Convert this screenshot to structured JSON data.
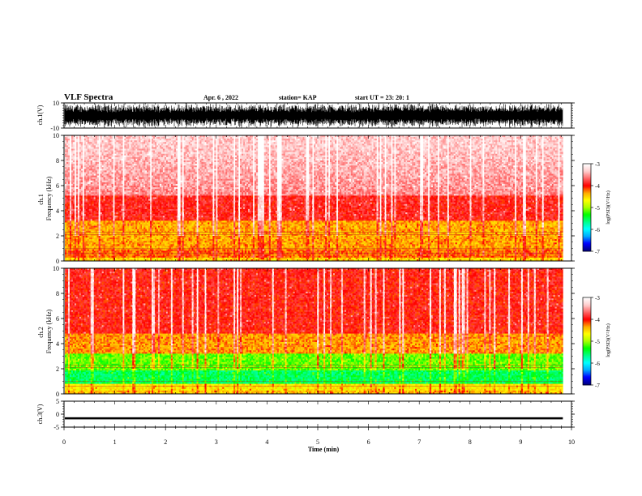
{
  "header": {
    "title": "VLF Spectra",
    "date": "Apr. 6  , 2022",
    "station": "station= KAP",
    "start": "start  UT  =   23: 20: 1"
  },
  "chart_data": [
    {
      "type": "line",
      "name": "ch1-waveform",
      "ylabel": "ch.1(V)",
      "ylim": [
        -10,
        10
      ],
      "yticks": [
        10,
        -10
      ],
      "xlim": [
        0,
        10
      ],
      "data_end_min": 9.83,
      "shape": "dense noise filling most of the range"
    },
    {
      "type": "heatmap",
      "name": "ch1-spectrogram",
      "ylabel_lines": [
        "ch.1",
        "Frequency  (kHz)"
      ],
      "ylim": [
        0,
        10
      ],
      "yticks": [
        0,
        2,
        4,
        6,
        8,
        10
      ],
      "xlim": [
        0,
        10
      ],
      "data_end_min": 9.83,
      "bands": [
        {
          "from_khz": 0,
          "to_khz": 1.0,
          "dominant": "red/orange"
        },
        {
          "from_khz": 1.0,
          "to_khz": 3.2,
          "dominant": "yellow"
        },
        {
          "from_khz": 3.2,
          "to_khz": 5.2,
          "dominant": "red"
        },
        {
          "from_khz": 5.2,
          "to_khz": 10,
          "dominant": "pink/light red"
        }
      ],
      "colorbar": {
        "label": "log(PSD)(V²/Hz)",
        "ticks": [
          "-3",
          "-4",
          "-5",
          "-6",
          "-7"
        ],
        "range": [
          -7,
          -3
        ]
      }
    },
    {
      "type": "heatmap",
      "name": "ch2-spectrogram",
      "ylabel_lines": [
        "ch.2",
        "Frequency  (kHz)"
      ],
      "ylim": [
        0,
        10
      ],
      "yticks": [
        0,
        2,
        4,
        6,
        8,
        10
      ],
      "xlim": [
        0,
        10
      ],
      "data_end_min": 9.83,
      "bands": [
        {
          "from_khz": 0,
          "to_khz": 0.8,
          "dominant": "yellow/red"
        },
        {
          "from_khz": 0.8,
          "to_khz": 1.8,
          "dominant": "cyan/green"
        },
        {
          "from_khz": 1.8,
          "to_khz": 3.2,
          "dominant": "green"
        },
        {
          "from_khz": 3.2,
          "to_khz": 4.8,
          "dominant": "yellow/red"
        },
        {
          "from_khz": 4.8,
          "to_khz": 10,
          "dominant": "red"
        }
      ],
      "colorbar": {
        "label": "log(PSD)(V²/Hz)",
        "ticks": [
          "-3",
          "-4",
          "-5",
          "-6",
          "-7"
        ],
        "range": [
          -7,
          -3
        ]
      }
    },
    {
      "type": "line",
      "name": "ch3-waveform",
      "ylabel": "ch.3(V)",
      "ylim": [
        -5,
        5
      ],
      "yticks": [
        5,
        0,
        -5
      ],
      "xlim": [
        0,
        10
      ],
      "data_end_min": 9.83,
      "shape": "nearly constant near -1.5 V"
    }
  ],
  "xaxis": {
    "label": "Time  (min)",
    "ticks": [
      "0",
      "1",
      "2",
      "3",
      "4",
      "5",
      "6",
      "7",
      "8",
      "9",
      "10"
    ]
  },
  "colors": {
    "ch1_line": "#000000",
    "ch3_line": "#000000",
    "colormap": [
      "#000080",
      "#0000ff",
      "#00aaff",
      "#00ffff",
      "#00ff88",
      "#00ff00",
      "#aaff00",
      "#ffff00",
      "#ffaa00",
      "#ff0000",
      "#ff6666",
      "#ffcccc",
      "#ffffff"
    ]
  }
}
